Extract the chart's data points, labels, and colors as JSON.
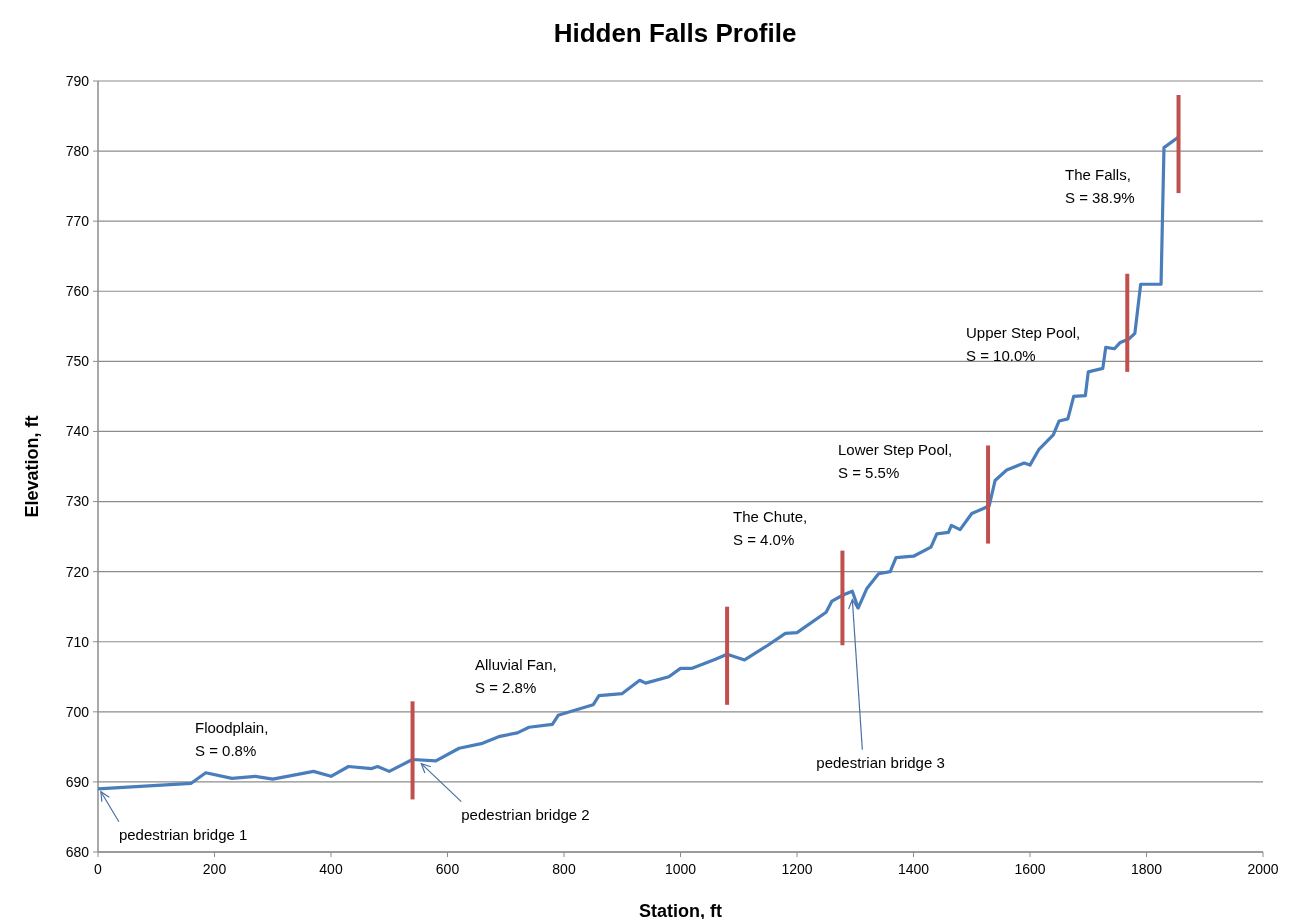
{
  "chart_data": {
    "type": "line",
    "title": "Hidden Falls Profile",
    "xlabel": "Station, ft",
    "ylabel": "Elevation, ft",
    "xlim": [
      0,
      2000
    ],
    "xticks": [
      0,
      200,
      400,
      600,
      800,
      1000,
      1200,
      1400,
      1600,
      1800,
      2000
    ],
    "ylim": [
      680,
      790
    ],
    "yticks": [
      680,
      690,
      700,
      710,
      720,
      730,
      740,
      750,
      760,
      770,
      780,
      790
    ],
    "grid": "y",
    "line_style": "solid",
    "marker": "none",
    "series": [
      {
        "color": "#4a7ebb",
        "x": [
          0,
          160,
          185,
          230,
          270,
          300,
          370,
          400,
          430,
          470,
          480,
          500,
          540,
          580,
          620,
          660,
          690,
          720,
          740,
          780,
          790,
          850,
          860,
          900,
          930,
          940,
          980,
          1000,
          1020,
          1060,
          1080,
          1110,
          1150,
          1180,
          1200,
          1250,
          1260,
          1280,
          1295,
          1305,
          1320,
          1340,
          1360,
          1370,
          1400,
          1430,
          1440,
          1460,
          1465,
          1480,
          1500,
          1520,
          1530,
          1540,
          1560,
          1590,
          1600,
          1615,
          1640,
          1650,
          1665,
          1675,
          1695,
          1700,
          1725,
          1730,
          1745,
          1755,
          1770,
          1780,
          1790,
          1825,
          1830,
          1855
        ],
        "values": [
          689,
          689.8,
          691.3,
          690.5,
          690.8,
          690.4,
          691.5,
          690.8,
          692.2,
          691.9,
          692.2,
          691.5,
          693.2,
          693,
          694.8,
          695.5,
          696.5,
          697,
          697.8,
          698.2,
          699.5,
          701,
          702.3,
          702.6,
          704.5,
          704.1,
          705,
          706.2,
          706.2,
          707.5,
          708.2,
          707.4,
          709.5,
          711.2,
          711.3,
          714.2,
          715.8,
          716.7,
          717.2,
          714.8,
          717.6,
          719.7,
          720,
          722,
          722.2,
          723.5,
          725.4,
          725.6,
          726.6,
          726,
          728.3,
          729,
          729.4,
          733,
          734.5,
          735.5,
          735.2,
          737.4,
          739.5,
          741.5,
          741.8,
          745,
          745.1,
          748.5,
          749,
          752,
          751.8,
          752.7,
          753.2,
          754,
          761,
          761,
          780.5,
          782
        ]
      },
      {
        "color": "#c0504d",
        "x": [
          540,
          540
        ],
        "values": [
          687.5,
          701.5
        ]
      },
      {
        "color": "#c0504d",
        "x": [
          1080,
          1080
        ],
        "values": [
          701,
          715
        ]
      },
      {
        "color": "#c0504d",
        "x": [
          1278,
          1278
        ],
        "values": [
          709.5,
          723
        ]
      },
      {
        "color": "#c0504d",
        "x": [
          1528,
          1528
        ],
        "values": [
          724,
          738
        ]
      },
      {
        "color": "#c0504d",
        "x": [
          1767,
          1767
        ],
        "values": [
          748.5,
          762.5
        ]
      },
      {
        "color": "#c0504d",
        "x": [
          1855,
          1855
        ],
        "values": [
          774,
          788
        ]
      }
    ],
    "annotations": [
      "Floodplain,\nS = 0.8%",
      "Alluvial Fan,\nS = 2.8%",
      "The Chute,\nS = 4.0%",
      "Lower Step Pool,\nS = 5.5%",
      "Upper Step Pool,\nS = 10.0%",
      "The Falls,\nS = 38.9%",
      {
        "text": "pedestrian bridge 1",
        "x": 5,
        "y": 688.6
      },
      {
        "text": "pedestrian bridge 2",
        "x": 555,
        "y": 692.6
      },
      {
        "text": "pedestrian bridge 3",
        "x": 1295,
        "y": 716
      }
    ]
  }
}
